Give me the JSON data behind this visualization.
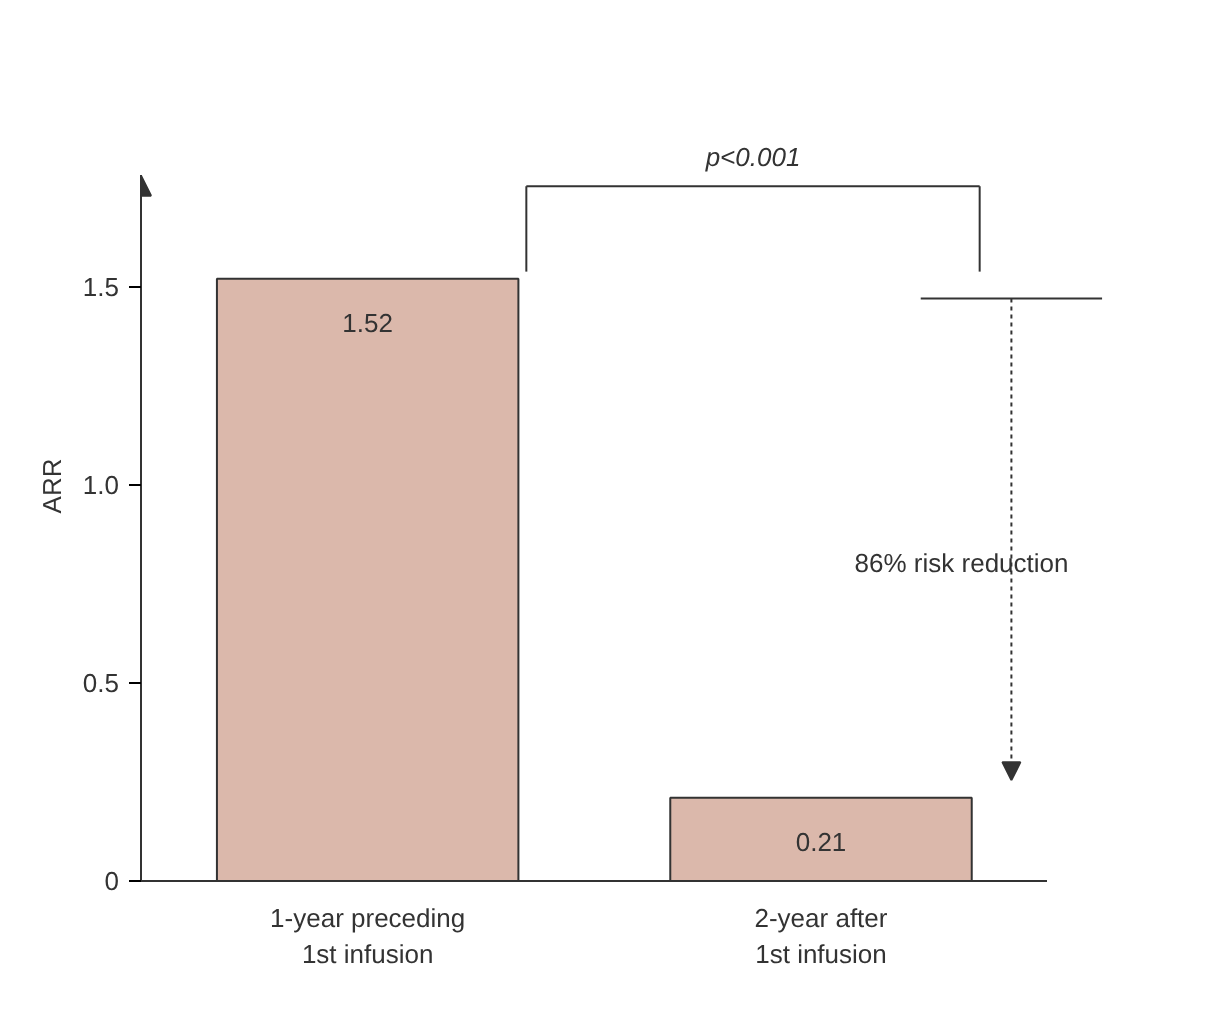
{
  "chart_data": {
    "type": "bar",
    "ylabel": "ARR",
    "categories": [
      "1-year preceding\n1st infusion",
      "2-year after\n1st infusion"
    ],
    "values": [
      1.52,
      0.21
    ],
    "color": "#dbb8ab",
    "data_labels": true,
    "ylim": [
      0,
      1.78
    ],
    "yticks": [
      0,
      {
        "value": 0.5,
        "label": "0.5"
      },
      {
        "value": 1.0,
        "label": "1.0"
      },
      {
        "value": 1.5,
        "label": "1.5"
      }
    ],
    "grid": false,
    "ref_lines": [
      {
        "axis": "y",
        "value": 1.47
      }
    ],
    "annotations": [
      "p<0.001",
      "86% risk reduction"
    ]
  }
}
